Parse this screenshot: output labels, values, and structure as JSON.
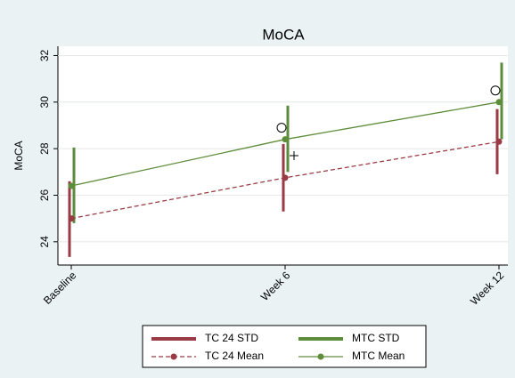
{
  "chart_data": {
    "type": "line",
    "title": "MoCA",
    "y_label": "MoCA",
    "categories": [
      "Baseline",
      "Week 6",
      "Week 12"
    ],
    "ylim": [
      23,
      32.4
    ],
    "yticks": [
      24,
      26,
      28,
      30,
      32
    ],
    "grid": true,
    "ranges": [
      {
        "name": "TC 24 STD",
        "color": "#993a44",
        "low": [
          23.35,
          25.3,
          26.9
        ],
        "high": [
          26.6,
          28.2,
          29.7
        ]
      },
      {
        "name": "MTC STD",
        "color": "#5d8c3a",
        "low": [
          24.8,
          27.0,
          28.4
        ],
        "high": [
          28.05,
          29.85,
          31.7
        ]
      }
    ],
    "series": [
      {
        "name": "TC 24 Mean",
        "color": "#993a44",
        "dashed": true,
        "values": [
          25.0,
          26.75,
          28.3
        ]
      },
      {
        "name": "MTC Mean",
        "color": "#5d8c3a",
        "dashed": false,
        "values": [
          26.4,
          28.4,
          30.0
        ]
      }
    ],
    "circles": [
      null,
      28.9,
      30.5
    ],
    "plus": [
      null,
      27.7,
      null
    ]
  }
}
